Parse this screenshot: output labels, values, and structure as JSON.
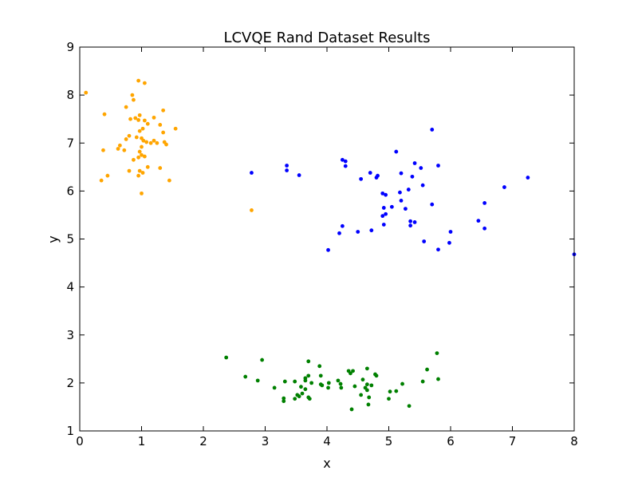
{
  "chart_data": {
    "type": "scatter",
    "title": "LCVQE Rand Dataset Results",
    "xlabel": "x",
    "ylabel": "y",
    "xlim": [
      0,
      8
    ],
    "ylim": [
      1,
      9
    ],
    "xticks": [
      "0",
      "1",
      "2",
      "3",
      "4",
      "5",
      "6",
      "7",
      "8"
    ],
    "yticks": [
      "1",
      "2",
      "3",
      "4",
      "5",
      "6",
      "7",
      "8",
      "9"
    ],
    "grid": false,
    "legend": "none",
    "series": [
      {
        "color": "#ffa500",
        "points": [
          [
            0.1,
            8.05
          ],
          [
            0.95,
            8.3
          ],
          [
            1.05,
            8.25
          ],
          [
            0.85,
            8.0
          ],
          [
            0.87,
            7.9
          ],
          [
            0.75,
            7.75
          ],
          [
            1.35,
            7.68
          ],
          [
            0.4,
            7.6
          ],
          [
            1.2,
            7.53
          ],
          [
            0.97,
            7.58
          ],
          [
            1.05,
            7.47
          ],
          [
            0.9,
            7.52
          ],
          [
            0.82,
            7.5
          ],
          [
            0.95,
            7.48
          ],
          [
            1.1,
            7.4
          ],
          [
            1.3,
            7.38
          ],
          [
            1.02,
            7.3
          ],
          [
            1.55,
            7.3
          ],
          [
            0.97,
            7.25
          ],
          [
            1.35,
            7.22
          ],
          [
            0.8,
            7.15
          ],
          [
            0.92,
            7.12
          ],
          [
            1.0,
            7.1
          ],
          [
            0.75,
            7.08
          ],
          [
            1.03,
            7.05
          ],
          [
            1.08,
            7.02
          ],
          [
            1.2,
            7.05
          ],
          [
            1.25,
            7.0
          ],
          [
            1.37,
            7.02
          ],
          [
            1.15,
            7.0
          ],
          [
            1.4,
            6.97
          ],
          [
            1.0,
            6.92
          ],
          [
            0.65,
            6.95
          ],
          [
            0.62,
            6.88
          ],
          [
            0.38,
            6.85
          ],
          [
            0.72,
            6.85
          ],
          [
            0.97,
            6.82
          ],
          [
            1.0,
            6.75
          ],
          [
            1.05,
            6.72
          ],
          [
            0.95,
            6.7
          ],
          [
            0.87,
            6.65
          ],
          [
            1.1,
            6.5
          ],
          [
            1.3,
            6.48
          ],
          [
            0.8,
            6.42
          ],
          [
            0.97,
            6.42
          ],
          [
            1.02,
            6.38
          ],
          [
            0.95,
            6.32
          ],
          [
            0.45,
            6.32
          ],
          [
            0.35,
            6.22
          ],
          [
            1.45,
            6.22
          ],
          [
            1.0,
            5.95
          ],
          [
            2.78,
            5.6
          ]
        ]
      },
      {
        "color": "#0000ff",
        "points": [
          [
            5.7,
            7.28
          ],
          [
            5.12,
            6.82
          ],
          [
            4.25,
            6.65
          ],
          [
            4.3,
            6.62
          ],
          [
            5.42,
            6.58
          ],
          [
            5.8,
            6.53
          ],
          [
            3.35,
            6.53
          ],
          [
            4.3,
            6.52
          ],
          [
            5.52,
            6.48
          ],
          [
            3.35,
            6.43
          ],
          [
            2.78,
            6.38
          ],
          [
            4.7,
            6.38
          ],
          [
            5.2,
            6.37
          ],
          [
            4.82,
            6.32
          ],
          [
            3.55,
            6.33
          ],
          [
            4.8,
            6.28
          ],
          [
            5.38,
            6.3
          ],
          [
            7.25,
            6.28
          ],
          [
            4.55,
            6.25
          ],
          [
            5.55,
            6.12
          ],
          [
            6.87,
            6.08
          ],
          [
            5.32,
            6.03
          ],
          [
            5.18,
            5.97
          ],
          [
            4.9,
            5.95
          ],
          [
            4.95,
            5.92
          ],
          [
            5.2,
            5.8
          ],
          [
            6.55,
            5.75
          ],
          [
            5.7,
            5.72
          ],
          [
            5.05,
            5.67
          ],
          [
            4.92,
            5.65
          ],
          [
            5.27,
            5.63
          ],
          [
            4.95,
            5.52
          ],
          [
            4.9,
            5.48
          ],
          [
            6.45,
            5.38
          ],
          [
            5.35,
            5.37
          ],
          [
            5.42,
            5.35
          ],
          [
            4.92,
            5.3
          ],
          [
            5.35,
            5.28
          ],
          [
            4.25,
            5.27
          ],
          [
            6.55,
            5.22
          ],
          [
            4.72,
            5.18
          ],
          [
            4.5,
            5.15
          ],
          [
            4.2,
            5.12
          ],
          [
            6.0,
            5.15
          ],
          [
            5.57,
            4.95
          ],
          [
            5.98,
            4.92
          ],
          [
            5.8,
            4.78
          ],
          [
            4.02,
            4.77
          ],
          [
            8.0,
            4.68
          ]
        ]
      },
      {
        "color": "#008000",
        "points": [
          [
            5.78,
            2.62
          ],
          [
            2.37,
            2.53
          ],
          [
            2.95,
            2.48
          ],
          [
            3.7,
            2.45
          ],
          [
            3.88,
            2.35
          ],
          [
            4.65,
            2.3
          ],
          [
            5.62,
            2.28
          ],
          [
            4.35,
            2.25
          ],
          [
            4.42,
            2.25
          ],
          [
            4.38,
            2.2
          ],
          [
            4.78,
            2.18
          ],
          [
            4.8,
            2.15
          ],
          [
            3.7,
            2.15
          ],
          [
            3.9,
            2.15
          ],
          [
            2.68,
            2.13
          ],
          [
            3.65,
            2.1
          ],
          [
            5.8,
            2.08
          ],
          [
            4.58,
            2.07
          ],
          [
            3.65,
            2.05
          ],
          [
            2.88,
            2.05
          ],
          [
            4.18,
            2.05
          ],
          [
            3.32,
            2.03
          ],
          [
            3.48,
            2.03
          ],
          [
            5.55,
            2.03
          ],
          [
            4.03,
            2.0
          ],
          [
            3.75,
            2.0
          ],
          [
            4.22,
            1.98
          ],
          [
            4.65,
            1.97
          ],
          [
            3.9,
            1.97
          ],
          [
            5.22,
            1.98
          ],
          [
            3.92,
            1.95
          ],
          [
            4.72,
            1.95
          ],
          [
            4.45,
            1.93
          ],
          [
            3.58,
            1.92
          ],
          [
            4.23,
            1.9
          ],
          [
            4.62,
            1.9
          ],
          [
            3.15,
            1.9
          ],
          [
            4.02,
            1.9
          ],
          [
            3.65,
            1.87
          ],
          [
            4.65,
            1.85
          ],
          [
            5.12,
            1.83
          ],
          [
            5.02,
            1.82
          ],
          [
            3.6,
            1.78
          ],
          [
            3.52,
            1.75
          ],
          [
            4.55,
            1.75
          ],
          [
            3.55,
            1.72
          ],
          [
            3.7,
            1.7
          ],
          [
            4.68,
            1.7
          ],
          [
            3.3,
            1.68
          ],
          [
            3.48,
            1.67
          ],
          [
            3.72,
            1.67
          ],
          [
            5.0,
            1.67
          ],
          [
            3.3,
            1.62
          ],
          [
            4.67,
            1.55
          ],
          [
            5.33,
            1.52
          ],
          [
            4.4,
            1.45
          ]
        ]
      }
    ]
  }
}
